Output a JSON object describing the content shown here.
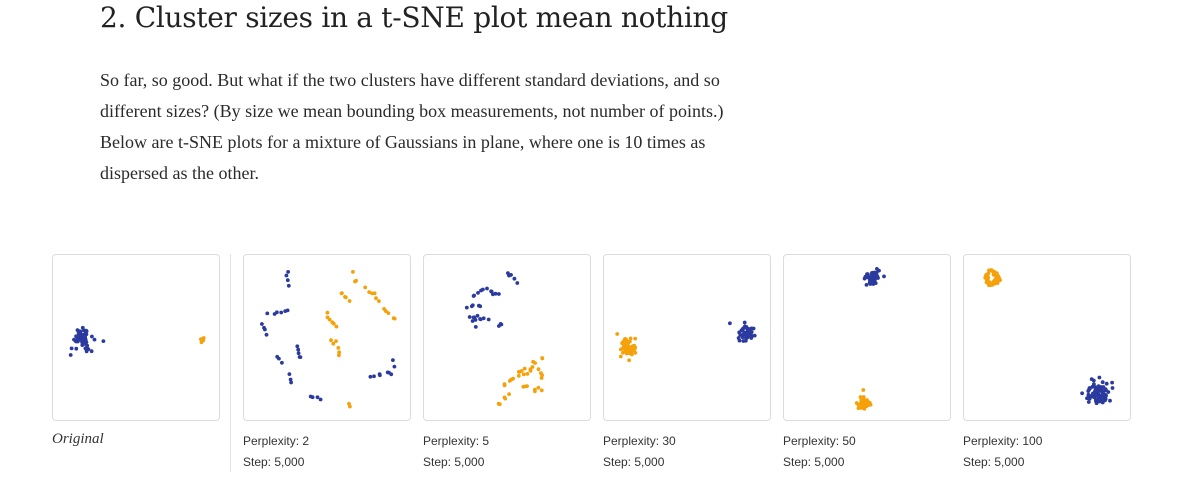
{
  "heading": "2. Cluster sizes in a t-SNE plot mean nothing",
  "paragraph": "So far, so good. But what if the two clusters have different standard deviations, and so different sizes? (By size we mean bounding box measurements, not number of points.) Below are t-SNE plots for a mixture of Gaussians in plane, where one is 10 times as dispersed as the other.",
  "colors": {
    "blue": "#2b3a9e",
    "orange": "#f5a10a"
  },
  "original": {
    "caption": "Original"
  },
  "runs": [
    {
      "perplexity": "Perplexity: 2",
      "step": "Step: 5,000"
    },
    {
      "perplexity": "Perplexity: 5",
      "step": "Step: 5,000"
    },
    {
      "perplexity": "Perplexity: 30",
      "step": "Step: 5,000"
    },
    {
      "perplexity": "Perplexity: 50",
      "step": "Step: 5,000"
    },
    {
      "perplexity": "Perplexity: 100",
      "step": "Step: 5,000"
    }
  ]
}
